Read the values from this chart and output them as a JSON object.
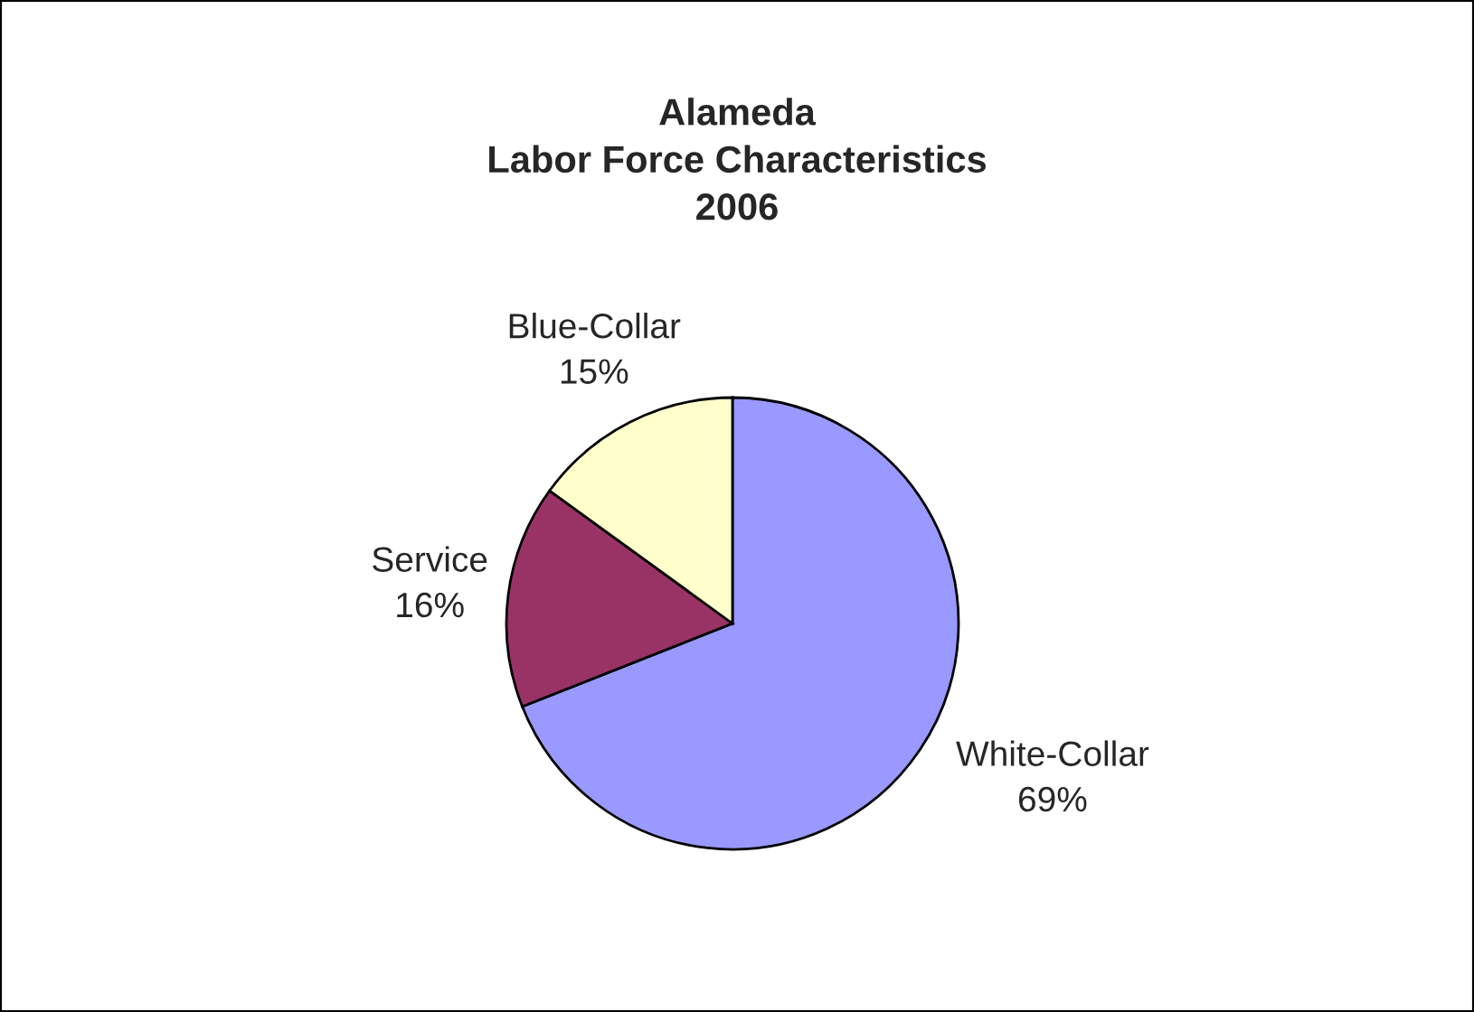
{
  "chart_data": {
    "type": "pie",
    "title": "Alameda\nLabor Force Characteristics\n2006",
    "categories": [
      "White-Collar",
      "Service",
      "Blue-Collar"
    ],
    "values": [
      69,
      16,
      15
    ],
    "value_labels": [
      "69%",
      "16%",
      "15%"
    ],
    "colors": [
      "#9999ff",
      "#993366",
      "#ffffcc"
    ]
  }
}
